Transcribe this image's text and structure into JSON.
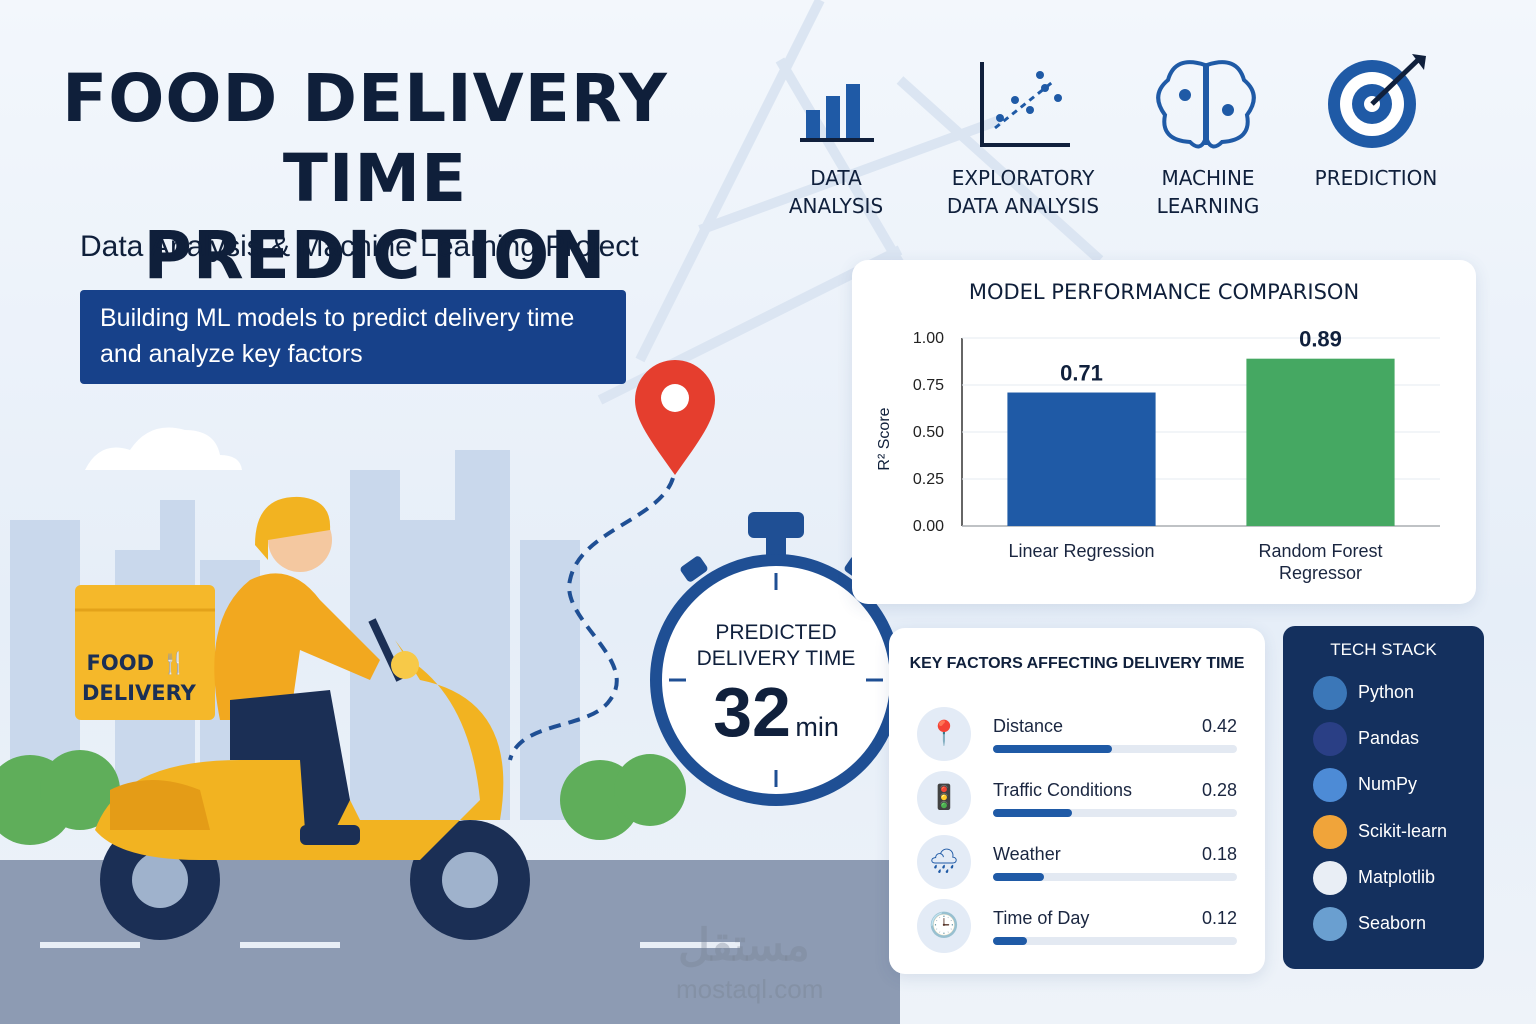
{
  "header": {
    "title": [
      "FOOD DELIVERY",
      "TIME PREDICTION"
    ],
    "subtitle": "Data Analysis & Machine Learning Project",
    "description": "Building ML models to predict delivery time and analyze key factors"
  },
  "steps": [
    "DATA ANALYSIS",
    "EXPLORATORY DATA ANALYSIS",
    "MACHINE LEARNING",
    "PREDICTION"
  ],
  "illustration": {
    "box_label": [
      "FOOD",
      "DELIVERY"
    ]
  },
  "prediction": {
    "label": "PREDICTED DELIVERY TIME",
    "value": 32,
    "unit": "min"
  },
  "model_chart": {
    "type": "bar",
    "title": "MODEL PERFORMANCE COMPARISON",
    "y_label": "R² Score",
    "categories": [
      "Linear Regression",
      "Random Forest Regressor"
    ],
    "values": [
      0.71,
      0.89
    ],
    "colors": [
      "#1f5aa6",
      "#45a862"
    ],
    "ylim": [
      0,
      1
    ],
    "yticks": [
      {
        "value": 0,
        "label": "0.00"
      },
      {
        "value": 0.25,
        "label": "0.25"
      },
      {
        "value": 0.5,
        "label": "0.50"
      },
      {
        "value": 0.75,
        "label": "0.75"
      },
      {
        "value": 1,
        "label": "1.00"
      }
    ],
    "grid": true
  },
  "key_factors": {
    "title": "KEY FACTORS AFFECTING DELIVERY TIME",
    "xlim": [
      0,
      0.86
    ],
    "factors": [
      {
        "name": "Distance",
        "value": 0.42
      },
      {
        "name": "Traffic Conditions",
        "value": 0.28
      },
      {
        "name": "Weather",
        "value": 0.18
      },
      {
        "name": "Time of Day",
        "value": 0.12
      }
    ]
  },
  "tech_stack": {
    "title": "TECH STACK",
    "items": [
      "Python",
      "Pandas",
      "NumPy",
      "Scikit-learn",
      "Matplotlib",
      "Seaborn"
    ]
  },
  "watermark": {
    "logo": "مستقل",
    "site": "mostaql.com"
  }
}
